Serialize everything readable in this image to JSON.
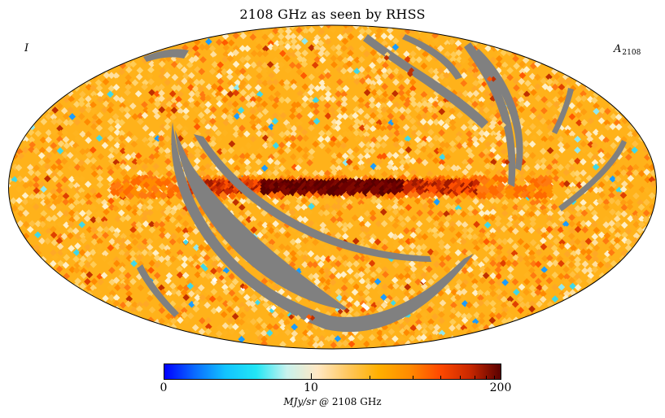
{
  "title": "2108 GHz as seen by RHSS",
  "stokes_label": "I",
  "map_label": {
    "base": "A",
    "sub": "2108"
  },
  "colorbar": {
    "min_label": "0",
    "mid_label": "10",
    "max_label": "200",
    "unit_main": "MJy/sr",
    "unit_at": "@",
    "unit_freq": "2108 GHz",
    "colors": [
      "#0000ff",
      "#0a6cff",
      "#12c4ff",
      "#22e6f5",
      "#c8f2ee",
      "#ffe8c4",
      "#ffc860",
      "#ffb000",
      "#ff8c00",
      "#ff4a00",
      "#c92800",
      "#5a0000"
    ]
  },
  "map": {
    "projection": "mollweide",
    "masked_color": "#808080",
    "outline_color": "#000000"
  }
}
